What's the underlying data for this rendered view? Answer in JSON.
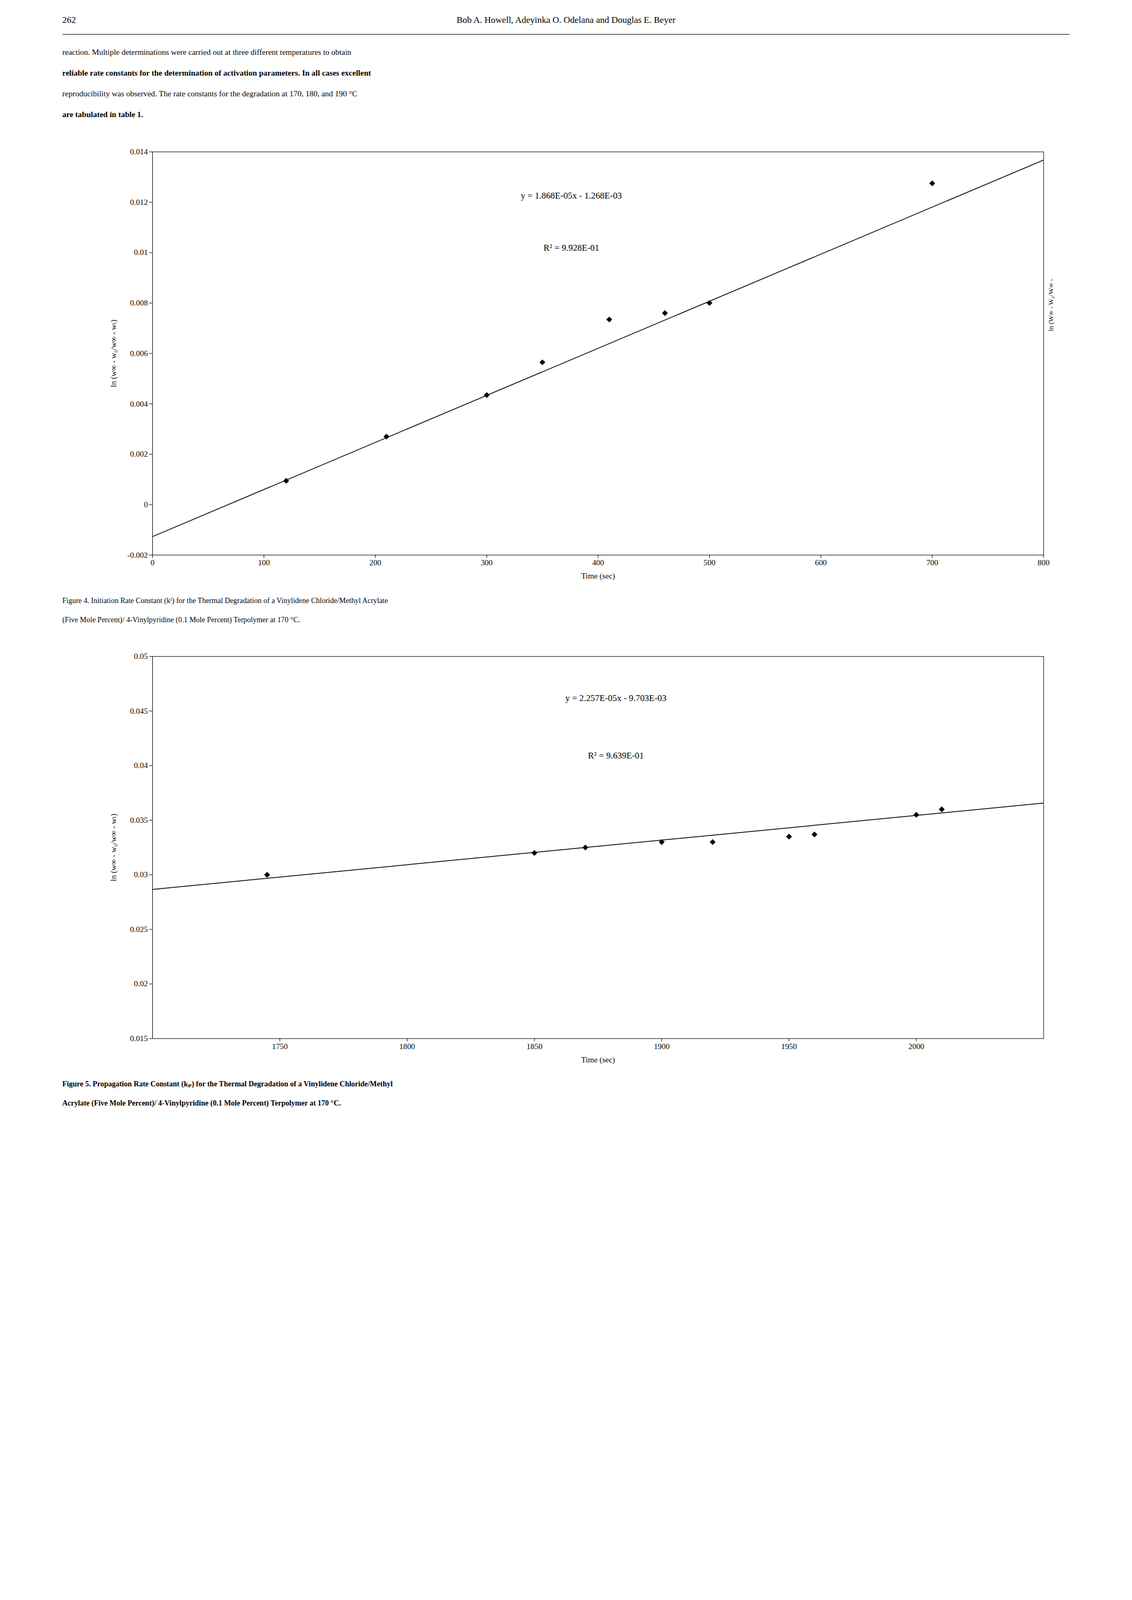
{
  "page_header": [
    "262",
    "Bob A. Howell, Adeyinka O. Odelana and Douglas E. Beyer"
  ],
  "body_text": [
    "reaction. Multiple determinations were carried out at three different temperatures to obtain",
    "reliable rate constants for the determination of activation parameters. In all cases excellent",
    "reproducibility was observed. The rate constants for the degradation at 170, 180, and 190 °C",
    "are tabulated in table 1."
  ],
  "chart_data": [
    {
      "type": "scatter",
      "xlabel": "Time (sec)",
      "ylabel": "ln (w∞ - w₀/w∞ - wₜ)",
      "annotations": [
        "y = 1.868E-05x - 1.268E-03",
        "R² = 9.928E-01",
        "ln (W∞ - W₀/W∞ -"
      ],
      "caption": [
        "Figure 4. Initiation Rate Constant (kᴵ) for the Thermal Degradation of a Vinylidene Chloride/Methyl Acrylate",
        "(Five Mole Percent)/ 4-Vinylpyridine (0.1 Mole Percent) Terpolymer at 170 °C."
      ],
      "xlim": [
        0,
        800
      ],
      "ylim": [
        -0.002,
        0.014
      ],
      "xticks": [
        0,
        100,
        200,
        300,
        400,
        500,
        600,
        700,
        800
      ],
      "yticks": [
        -0.002,
        0,
        0.002,
        0.004,
        0.006,
        0.008,
        0.01,
        0.012,
        0.014
      ],
      "series": [
        {
          "type": "line",
          "color": "#000000",
          "x": [
            0,
            800
          ],
          "values": [
            -0.001268,
            0.013676
          ]
        },
        {
          "type": "scatter",
          "color": "#000000",
          "marker": "diamond",
          "x": [
            120,
            210,
            300,
            350,
            410,
            460,
            500,
            700
          ],
          "values": [
            0.00095,
            0.0027,
            0.00435,
            0.00565,
            0.00735,
            0.0076,
            0.008,
            0.01275
          ]
        }
      ]
    },
    {
      "type": "scatter",
      "xlabel": "Time (sec)",
      "ylabel": "ln (w∞ - w₀/w∞ - wₜ)",
      "annotations": [
        "y = 2.257E-05x - 9.703E-03",
        "R² = 9.639E-01"
      ],
      "caption": [
        "Figure 5. Propagation Rate Constant (kₚ) for the Thermal Degradation of a Vinylidene Chloride/Methyl",
        "Acrylate (Five Mole Percent)/ 4-Vinylpyridine (0.1 Mole Percent) Terpolymer at 170 °C."
      ],
      "xlim": [
        1700,
        2050
      ],
      "ylim": [
        0.015,
        0.05
      ],
      "xticks": [
        1750,
        1800,
        1850,
        1900,
        1950,
        2000
      ],
      "yticks": [
        0.015,
        0.02,
        0.025,
        0.03,
        0.035,
        0.04,
        0.045,
        0.05
      ],
      "series": [
        {
          "type": "line",
          "color": "#000000",
          "x": [
            1700,
            2050
          ],
          "values": [
            0.028666,
            0.0365655
          ]
        },
        {
          "type": "scatter",
          "color": "#000000",
          "marker": "diamond",
          "x": [
            1745,
            1850,
            1870,
            1900,
            1920,
            1950,
            1960,
            2000,
            2010
          ],
          "values": [
            0.03,
            0.032,
            0.0325,
            0.033,
            0.033,
            0.0335,
            0.0337,
            0.0355,
            0.036
          ]
        }
      ]
    }
  ]
}
